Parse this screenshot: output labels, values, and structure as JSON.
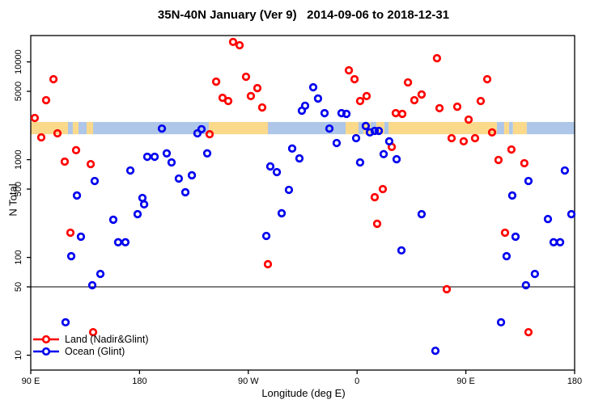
{
  "title": "35N-40N January (Ver 9)   2014-09-06 to 2018-12-31",
  "colors": {
    "land_series": "#ff0000",
    "ocean_series": "#0000ee",
    "band_land": "#fbd98b",
    "band_ocean": "#aec6e8",
    "axis": "#000000",
    "background": "#ffffff"
  },
  "legend": {
    "items": [
      {
        "label": "Land (Nadir&Glint)",
        "color": "#ff0000"
      },
      {
        "label": "Ocean (Glint)",
        "color": "#0000ee"
      }
    ]
  },
  "chart_data": {
    "type": "scatter",
    "title": "35N-40N January (Ver 9)   2014-09-06 to 2018-12-31",
    "xlabel": "Longitude (deg E)",
    "ylabel": "N Total",
    "x_axis": {
      "range": [
        90,
        540
      ],
      "ticks": [
        90,
        180,
        270,
        360,
        450,
        540
      ],
      "tick_labels": [
        "90 E",
        "180",
        "90 W",
        "0",
        "90 E",
        "180"
      ]
    },
    "y_axis": {
      "scale": "log",
      "range": [
        7,
        20000
      ],
      "ticks": [
        10,
        50,
        100,
        500,
        1000,
        5000,
        10000
      ],
      "tick_labels": [
        "10",
        "50",
        "100",
        "500",
        "1000",
        "5000",
        "10000"
      ]
    },
    "reference_line": {
      "value": 50,
      "color": "#000000"
    },
    "map_band": {
      "value_range": [
        1820,
        2430
      ],
      "land_color": "#fbd98b",
      "ocean_color": "#aec6e8",
      "segments": [
        {
          "from": 90.0,
          "to": 120.8,
          "type": "land"
        },
        {
          "from": 120.8,
          "to": 124.8,
          "type": "ocean"
        },
        {
          "from": 124.8,
          "to": 129.5,
          "type": "land"
        },
        {
          "from": 129.5,
          "to": 136.2,
          "type": "ocean"
        },
        {
          "from": 136.2,
          "to": 141.6,
          "type": "land"
        },
        {
          "from": 141.6,
          "to": 237.3,
          "type": "ocean"
        },
        {
          "from": 237.3,
          "to": 286.2,
          "type": "land"
        },
        {
          "from": 286.2,
          "to": 350.5,
          "type": "ocean"
        },
        {
          "from": 350.5,
          "to": 361.2,
          "type": "land"
        },
        {
          "from": 361.2,
          "to": 365.2,
          "type": "ocean"
        },
        {
          "from": 365.2,
          "to": 371.2,
          "type": "land"
        },
        {
          "from": 371.2,
          "to": 375.9,
          "type": "ocean"
        },
        {
          "from": 375.9,
          "to": 382.6,
          "type": "land"
        },
        {
          "from": 382.6,
          "to": 386.0,
          "type": "ocean"
        },
        {
          "from": 386.0,
          "to": 475.7,
          "type": "land"
        },
        {
          "from": 475.7,
          "to": 481.7,
          "type": "ocean"
        },
        {
          "from": 481.7,
          "to": 485.7,
          "type": "land"
        },
        {
          "from": 485.7,
          "to": 489.0,
          "type": "ocean"
        },
        {
          "from": 489.0,
          "to": 500.4,
          "type": "land"
        },
        {
          "from": 500.4,
          "to": 540.0,
          "type": "ocean"
        }
      ]
    },
    "series": [
      {
        "name": "Land (Nadir&Glint)",
        "color": "#ff0000",
        "points": [
          [
            108.8,
            6650
          ],
          [
            102.7,
            4060
          ],
          [
            93.3,
            2670
          ],
          [
            98.7,
            1690
          ],
          [
            112.1,
            1860
          ],
          [
            127.5,
            1250
          ],
          [
            118.1,
            955
          ],
          [
            139.6,
            900
          ],
          [
            257.4,
            16000
          ],
          [
            262.8,
            14800
          ],
          [
            243.4,
            6280
          ],
          [
            268.1,
            7050
          ],
          [
            277.5,
            5390
          ],
          [
            272.1,
            4470
          ],
          [
            248.7,
            4290
          ],
          [
            253.4,
            3980
          ],
          [
            281.5,
            3420
          ],
          [
            238.0,
            1820
          ],
          [
            353.2,
            8200
          ],
          [
            357.9,
            6650
          ],
          [
            367.9,
            4470
          ],
          [
            362.5,
            3980
          ],
          [
            402.1,
            6170
          ],
          [
            413.4,
            4640
          ],
          [
            407.4,
            4060
          ],
          [
            392.0,
            2990
          ],
          [
            397.4,
            2940
          ],
          [
            388.7,
            1350
          ],
          [
            381.3,
            500
          ],
          [
            374.6,
            413
          ],
          [
            426.1,
            10900
          ],
          [
            467.7,
            6650
          ],
          [
            462.3,
            3980
          ],
          [
            442.9,
            3480
          ],
          [
            428.2,
            3360
          ],
          [
            452.3,
            2570
          ],
          [
            471.7,
            1900
          ],
          [
            438.2,
            1660
          ],
          [
            448.2,
            1540
          ],
          [
            457.6,
            1660
          ],
          [
            487.7,
            1270
          ],
          [
            477.0,
            993
          ],
          [
            498.4,
            920
          ],
          [
            122.8,
            179
          ],
          [
            141.6,
            17.2
          ],
          [
            286.2,
            85.3
          ],
          [
            376.6,
            221
          ],
          [
            482.4,
            179
          ],
          [
            434.2,
            47.3
          ],
          [
            501.8,
            17.2
          ]
        ]
      },
      {
        "name": "Ocean (Glint)",
        "color": "#0000ee",
        "points": [
          [
            198.5,
            2080
          ],
          [
            186.4,
            1070
          ],
          [
            192.5,
            1070
          ],
          [
            202.5,
            1160
          ],
          [
            172.4,
            775
          ],
          [
            142.9,
            605
          ],
          [
            128.2,
            430
          ],
          [
            182.4,
            406
          ],
          [
            231.3,
            2050
          ],
          [
            227.9,
            1860
          ],
          [
            236.0,
            1160
          ],
          [
            206.5,
            937
          ],
          [
            306.3,
            1300
          ],
          [
            312.3,
            1030
          ],
          [
            212.5,
            641
          ],
          [
            223.3,
            692
          ],
          [
            217.9,
            464
          ],
          [
            288.2,
            853
          ],
          [
            293.6,
            746
          ],
          [
            303.6,
            491
          ],
          [
            323.7,
            5500
          ],
          [
            327.7,
            4220
          ],
          [
            317.0,
            3560
          ],
          [
            314.3,
            3170
          ],
          [
            333.1,
            2990
          ],
          [
            347.1,
            2990
          ],
          [
            351.2,
            2940
          ],
          [
            337.1,
            2080
          ],
          [
            367.2,
            2210
          ],
          [
            370.6,
            1900
          ],
          [
            374.6,
            1970
          ],
          [
            378.0,
            1970
          ],
          [
            359.2,
            1660
          ],
          [
            343.1,
            1480
          ],
          [
            386.6,
            1540
          ],
          [
            382.0,
            1140
          ],
          [
            392.7,
            1010
          ],
          [
            362.5,
            937
          ],
          [
            501.8,
            605
          ],
          [
            488.4,
            430
          ],
          [
            531.9,
            775
          ],
          [
            183.8,
            349
          ],
          [
            158.3,
            243
          ],
          [
            178.4,
            277
          ],
          [
            131.5,
            163
          ],
          [
            162.3,
            143
          ],
          [
            168.3,
            143
          ],
          [
            123.5,
            103
          ],
          [
            147.6,
            67.8
          ],
          [
            140.9,
            52
          ],
          [
            118.8,
            21.7
          ],
          [
            297.6,
            283
          ],
          [
            284.9,
            166
          ],
          [
            413.4,
            277
          ],
          [
            396.7,
            118
          ],
          [
            424.8,
            11.1
          ],
          [
            517.9,
            247
          ],
          [
            537.3,
            277
          ],
          [
            491.1,
            163
          ],
          [
            522.6,
            143
          ],
          [
            528.0,
            143
          ],
          [
            483.7,
            103
          ],
          [
            507.1,
            67.8
          ],
          [
            499.7,
            52
          ],
          [
            479.1,
            21.7
          ]
        ]
      }
    ],
    "legend": {
      "position": "bottom-left",
      "entries": [
        "Land (Nadir&Glint)",
        "Ocean (Glint)"
      ]
    }
  }
}
